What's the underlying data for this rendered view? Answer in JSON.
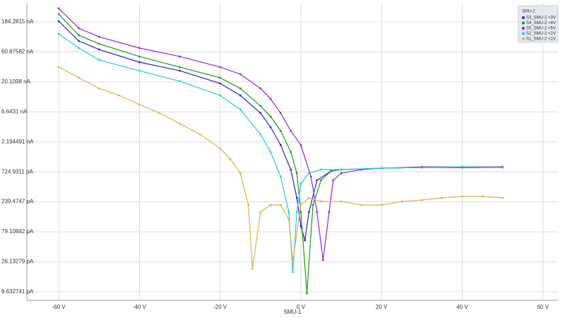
{
  "chart_data": {
    "type": "line",
    "x_label": "SMU-1",
    "legend_title": "SMU-2",
    "legend_position": "upper right",
    "log_y": true,
    "grid": true,
    "xlim": [
      -67.9,
      63.7
    ],
    "ylim": [
      6.3,
      363000
    ],
    "xticks": [
      {
        "value": -60,
        "label": "-60 V"
      },
      {
        "value": -40,
        "label": "-40 V"
      },
      {
        "value": -20,
        "label": "-20 V"
      },
      {
        "value": 0,
        "label": "0 V"
      },
      {
        "value": 20,
        "label": "20 V"
      },
      {
        "value": 40,
        "label": "40 V"
      },
      {
        "value": 60,
        "label": "60 V"
      }
    ],
    "yticks": [
      {
        "value": 184281.5,
        "label": "184.2815 nA"
      },
      {
        "value": 60875.82,
        "label": "60.87582 nA"
      },
      {
        "value": 20109.8,
        "label": "20.1098 nA"
      },
      {
        "value": 6643.1,
        "label": "6.6431 nA"
      },
      {
        "value": 2194.491,
        "label": "2.194491 nA"
      },
      {
        "value": 724.9311,
        "label": "724.9311 pA"
      },
      {
        "value": 239.4747,
        "label": "239.4747 pA"
      },
      {
        "value": 79.10842,
        "label": "79.10842 pA"
      },
      {
        "value": 26.13279,
        "label": "26.13279 pA"
      },
      {
        "value": 8.632741,
        "label": "8.632741 pA"
      }
    ],
    "series": [
      {
        "name": "S3_SMU-2 <3V",
        "color": "#2424c8",
        "x": [
          -60,
          -55,
          -50,
          -40,
          -30,
          -20,
          -15,
          -10,
          -7.5,
          -5,
          -2.5,
          -1,
          0,
          1,
          2,
          4,
          7.5,
          10,
          20,
          30,
          40,
          50
        ],
        "values": [
          189000,
          91000,
          66500,
          41600,
          30400,
          19000,
          12200,
          6350,
          3770,
          1950,
          787,
          277,
          97.5,
          57.8,
          164,
          532,
          746,
          787,
          828,
          851,
          851,
          851
        ]
      },
      {
        "name": "S4_SMU-2 <4V",
        "color": "#1a9a1a",
        "x": [
          -60,
          -55,
          -50,
          -40,
          -30,
          -20,
          -15,
          -10,
          -7.5,
          -5,
          -2.5,
          -1,
          0,
          1.5,
          3,
          5,
          7.5,
          10,
          20,
          30,
          40,
          50
        ],
        "values": [
          245500,
          112200,
          82000,
          51300,
          34700,
          23400,
          15800,
          8240,
          5570,
          3300,
          1510,
          690,
          164,
          8.17,
          213,
          532,
          746,
          787,
          828,
          851,
          873,
          873
        ]
      },
      {
        "name": "S5_SMU-2 <5V",
        "color": "#9b1fe0",
        "x": [
          -60,
          -55,
          -50,
          -40,
          -30,
          -20,
          -15,
          -10,
          -7.5,
          -5,
          -2.5,
          0,
          2.5,
          4,
          5.5,
          7,
          8,
          10,
          15,
          20,
          30,
          40,
          50
        ],
        "values": [
          303000,
          145600,
          106400,
          70100,
          51300,
          34700,
          26700,
          15800,
          10700,
          6350,
          3300,
          1950,
          606,
          164,
          27.9,
          164,
          532,
          690,
          787,
          828,
          873,
          873,
          873
        ]
      },
      {
        "name": "S2_SMU-2 <2V",
        "color": "#22c8e0",
        "x": [
          -60,
          -55,
          -50,
          -40,
          -30,
          -20,
          -15,
          -10,
          -7.5,
          -5,
          -3,
          -2,
          -1,
          0,
          2,
          5,
          10,
          20,
          30,
          40,
          50
        ],
        "values": [
          118300,
          70100,
          45000,
          30400,
          20600,
          12200,
          7240,
          2900,
          1510,
          606,
          164,
          17.9,
          164,
          467,
          690,
          787,
          787,
          828,
          851,
          873,
          851
        ]
      },
      {
        "name": "S1_SMU-2 <1V",
        "color": "#d8b44a",
        "x": [
          -60,
          -55,
          -50,
          -45,
          -40,
          -35,
          -30,
          -25,
          -20,
          -17.5,
          -15,
          -13,
          -12,
          -10,
          -7.5,
          -5,
          -3,
          -2,
          0,
          2,
          5,
          10,
          15,
          20,
          25,
          30,
          35,
          40,
          45,
          50
        ],
        "values": [
          34700,
          23400,
          15800,
          12200,
          8690,
          6350,
          4300,
          2900,
          1720,
          1160,
          690,
          213,
          20.4,
          164,
          213,
          213,
          126,
          26.4,
          213,
          277,
          243,
          243,
          213,
          213,
          243,
          256,
          277,
          292,
          292,
          277
        ]
      }
    ]
  }
}
